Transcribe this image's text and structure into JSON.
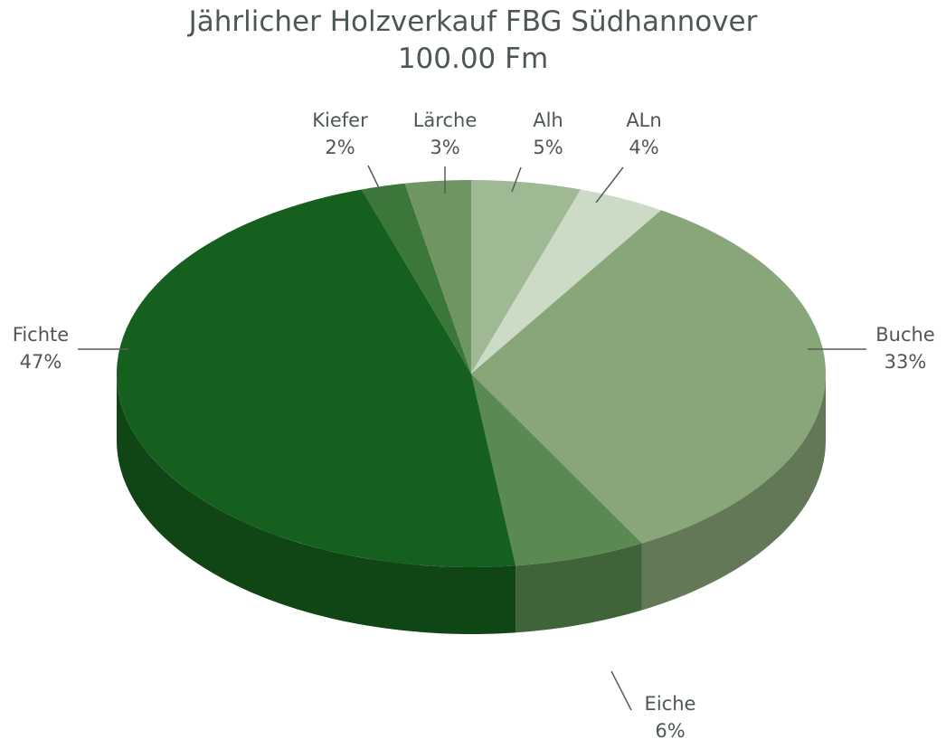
{
  "chart_data": {
    "type": "pie",
    "style": "3d",
    "title": "Jährlicher Holzverkauf FBG Südhannover",
    "subtitle": "100.00 Fm",
    "slices": [
      {
        "label": "Alh",
        "value": 5,
        "percent_label": "5%",
        "color": "#9fb994"
      },
      {
        "label": "ALn",
        "value": 4,
        "percent_label": "4%",
        "color": "#ccdbc6"
      },
      {
        "label": "Buche",
        "value": 33,
        "percent_label": "33%",
        "color": "#88a679"
      },
      {
        "label": "Eiche",
        "value": 6,
        "percent_label": "6%",
        "color": "#5a8a51"
      },
      {
        "label": "Fichte",
        "value": 47,
        "percent_label": "47%",
        "color": "#16601f"
      },
      {
        "label": "Kiefer",
        "value": 2,
        "percent_label": "2%",
        "color": "#3c773a"
      },
      {
        "label": "Lärche",
        "value": 3,
        "percent_label": "3%",
        "color": "#6f9662"
      }
    ]
  }
}
